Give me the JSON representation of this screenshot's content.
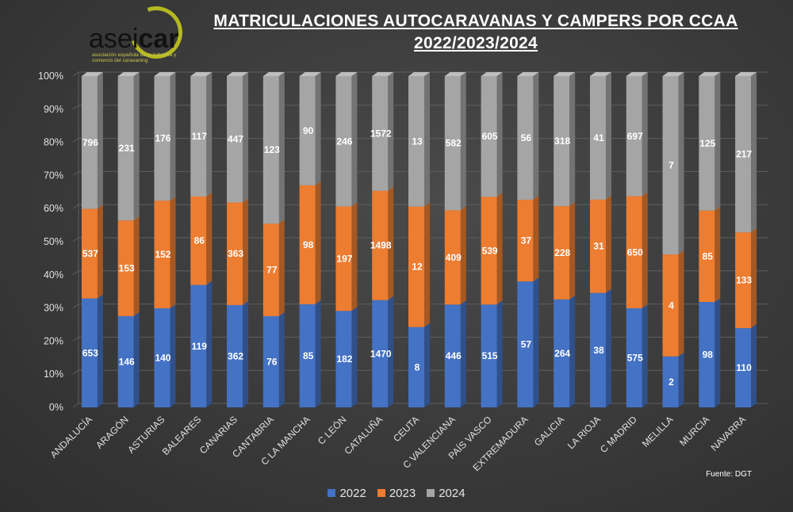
{
  "title_line1": "MATRICULACIONES AUTOCARAVANAS Y CAMPERS POR CCAA",
  "title_line2": "2022/2023/2024",
  "logo": {
    "word_a": "asei",
    "word_b": "car",
    "subtitle": "asociación española de la industria y comercio del caravaning"
  },
  "source": "Fuente: DGT",
  "colors": {
    "2022": "#4472c4",
    "2023": "#ed7d31",
    "2024": "#a5a5a5"
  },
  "chart_data": {
    "type": "bar",
    "stacked": "percent",
    "categories": [
      "ANDALUCÍA",
      "ARAGÓN",
      "ASTURIAS",
      "BALEARES",
      "CANARIAS",
      "CANTABRIA",
      "C LA MANCHA",
      "C LEÓN",
      "CATALUÑA",
      "CEUTA",
      "C VALENCIANA",
      "PAÍS VASCO",
      "EXTREMADURA",
      "GALICIA",
      "LA RIOJA",
      "C MADRID",
      "MELILLA",
      "MURCIA",
      "NAVARRA"
    ],
    "series": [
      {
        "name": "2022",
        "values": [
          653,
          146,
          140,
          119,
          362,
          76,
          85,
          182,
          1470,
          8,
          446,
          515,
          57,
          264,
          38,
          575,
          2,
          98,
          110
        ]
      },
      {
        "name": "2023",
        "values": [
          537,
          153,
          152,
          86,
          363,
          77,
          98,
          197,
          1498,
          12,
          409,
          539,
          37,
          228,
          31,
          650,
          4,
          85,
          133
        ]
      },
      {
        "name": "2024",
        "values": [
          796,
          231,
          176,
          117,
          447,
          123,
          90,
          246,
          1572,
          13,
          582,
          605,
          56,
          318,
          41,
          697,
          7,
          125,
          217
        ]
      }
    ],
    "y_ticks": [
      "0%",
      "10%",
      "20%",
      "30%",
      "40%",
      "50%",
      "60%",
      "70%",
      "80%",
      "90%",
      "100%"
    ],
    "ylim": [
      0,
      100
    ],
    "grid": true,
    "legend_position": "bottom"
  }
}
